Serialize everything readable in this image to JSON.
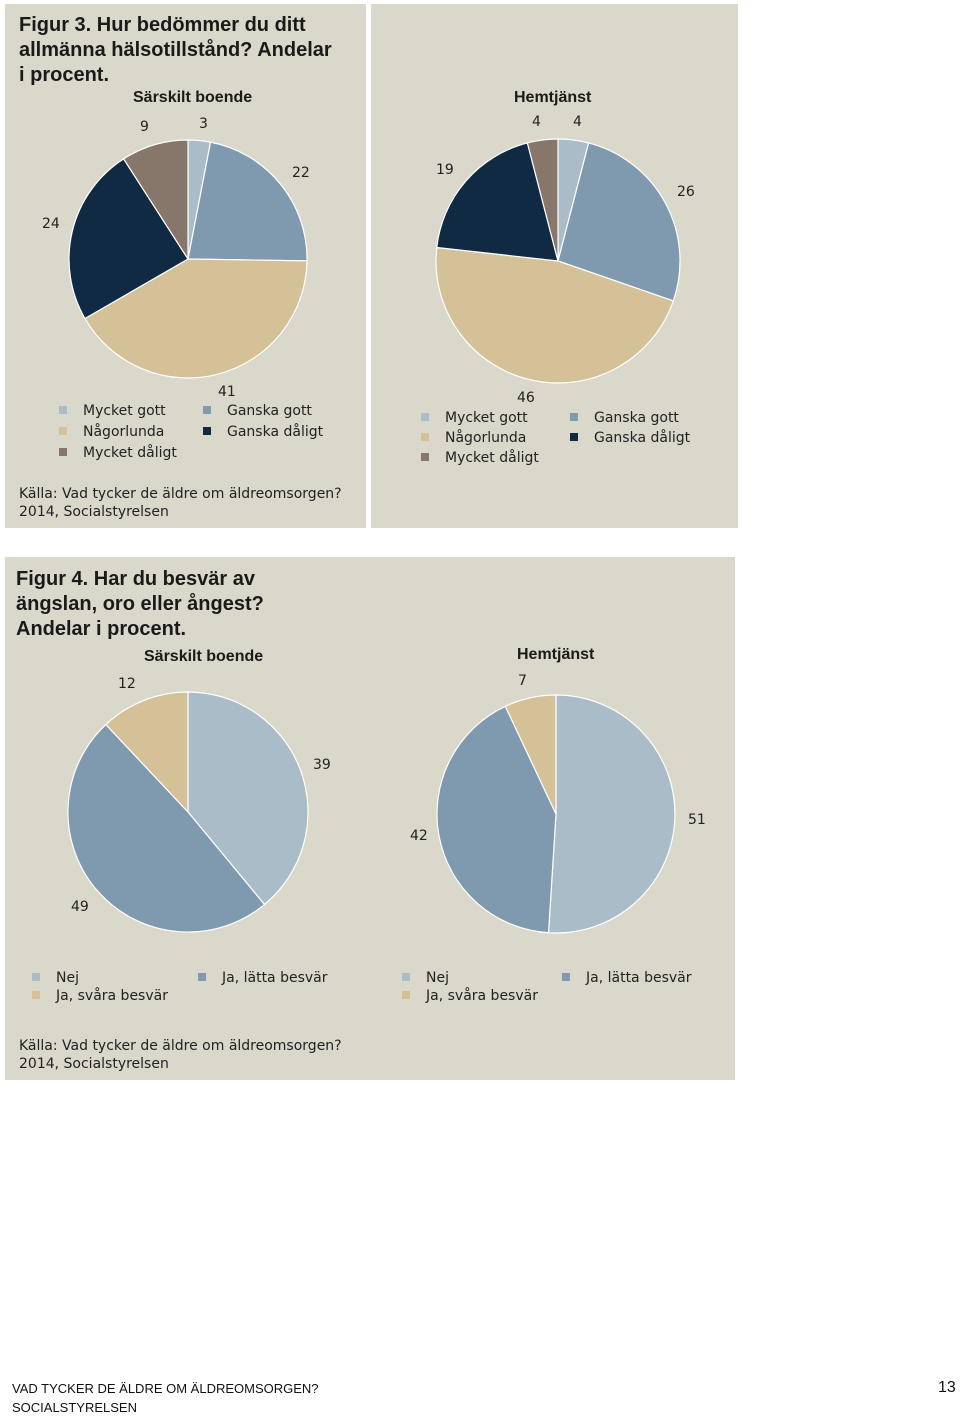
{
  "colors": {
    "panel_bg": "#dad7cb",
    "mycket_gott": "#a9bcc8",
    "ganska_gott": "#7f9aae",
    "nagorlunda": "#d4c198",
    "ganska_daligt": "#0f2a42",
    "mycket_daligt": "#87766a"
  },
  "figure3": {
    "title_lines": [
      "Figur 3. Hur bedömmer du ditt",
      "allmänna hälsotillstånd? Andelar",
      "i procent."
    ],
    "source_lines": [
      "Källa: Vad tycker de äldre om äldreomsorgen?",
      "2014, Socialstyrelsen"
    ],
    "legend": {
      "mycket_gott": "Mycket gott",
      "ganska_gott": "Ganska gott",
      "nagorlunda": "Någorlunda",
      "ganska_daligt": "Ganska dåligt",
      "mycket_daligt": "Mycket dåligt"
    }
  },
  "figure4": {
    "title_lines": [
      "Figur 4. Har du besvär av",
      "ängslan, oro eller ångest?",
      "Andelar i procent."
    ],
    "source_lines": [
      "Källa: Vad tycker de äldre om äldreomsorgen?",
      "2014, Socialstyrelsen"
    ],
    "legend": {
      "nej": "Nej",
      "latta": "Ja, lätta besvär",
      "svara": "Ja, svåra besvär"
    }
  },
  "chart_data": [
    {
      "type": "pie",
      "title": "Särskilt boende",
      "categories": [
        "Mycket gott",
        "Ganska gott",
        "Någorlunda",
        "Ganska dåligt",
        "Mycket dåligt"
      ],
      "values": [
        3,
        22,
        41,
        24,
        9
      ],
      "colors": [
        "#a9bcc8",
        "#7f9aae",
        "#d4c198",
        "#0f2a42",
        "#87766a"
      ],
      "labels": [
        "3",
        "22",
        "41",
        "24",
        "9"
      ]
    },
    {
      "type": "pie",
      "title": "Hemtjänst",
      "categories": [
        "Mycket gott",
        "Ganska gott",
        "Någorlunda",
        "Ganska dåligt",
        "Mycket dåligt"
      ],
      "values": [
        4,
        26,
        46,
        19,
        4
      ],
      "colors": [
        "#a9bcc8",
        "#7f9aae",
        "#d4c198",
        "#0f2a42",
        "#87766a"
      ],
      "labels": [
        "4",
        "26",
        "46",
        "19",
        "4"
      ]
    },
    {
      "type": "pie",
      "title": "Särskilt boende",
      "categories": [
        "Nej",
        "Ja, lätta besvär",
        "Ja, svåra besvär"
      ],
      "values": [
        39,
        49,
        12
      ],
      "colors": [
        "#a9bcc8",
        "#7f9aae",
        "#d4c198"
      ],
      "labels": [
        "39",
        "49",
        "12"
      ]
    },
    {
      "type": "pie",
      "title": "Hemtjänst",
      "categories": [
        "Nej",
        "Ja, lätta besvär",
        "Ja, svåra besvär"
      ],
      "values": [
        51,
        42,
        7
      ],
      "colors": [
        "#a9bcc8",
        "#7f9aae",
        "#d4c198"
      ],
      "labels": [
        "51",
        "42",
        "7"
      ]
    }
  ],
  "footer": {
    "lines": [
      "VAD TYCKER DE ÄLDRE OM ÄLDREOMSORGEN?",
      "SOCIALSTYRELSEN"
    ],
    "page_number": "13"
  }
}
